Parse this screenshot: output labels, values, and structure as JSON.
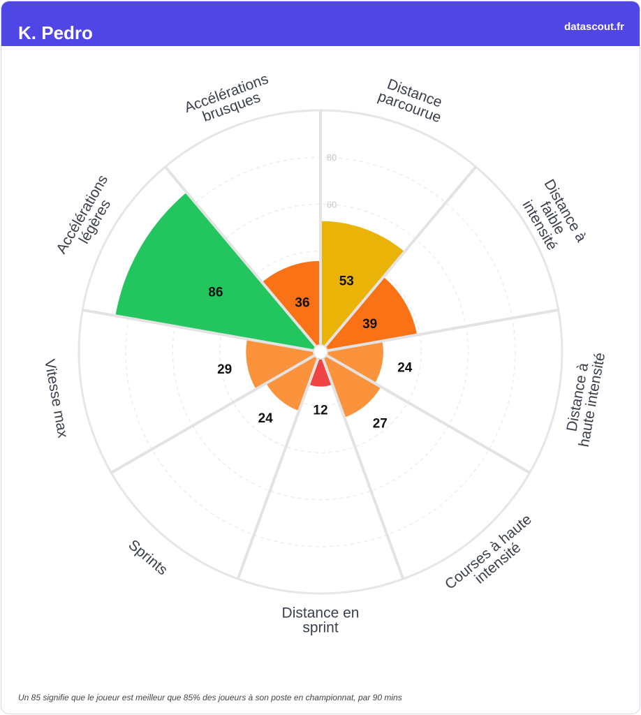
{
  "header": {
    "player_name": "K. Pedro",
    "brand": "datascout.fr"
  },
  "footnote": "Un 85 signifie que le joueur est meilleur que 85% des joueurs à son poste en championnat, par 90 mins",
  "colors": {
    "header_bg": "#4f46e5",
    "green": "#22c55e",
    "yellow": "#eab308",
    "dark_orange": "#f97316",
    "light_orange": "#fb923c",
    "red": "#ef4444",
    "grid": "#e6e6e6"
  },
  "chart_data": {
    "type": "polar_bar",
    "ylim": [
      0,
      100
    ],
    "ticks": [
      "60",
      "80"
    ],
    "categories": [
      {
        "label_lines": [
          "Distance",
          "parcourue"
        ],
        "value": 53,
        "color": "#eab308"
      },
      {
        "label_lines": [
          "Distance à",
          "faible",
          "intensité"
        ],
        "value": 39,
        "color": "#f97316"
      },
      {
        "label_lines": [
          "Distance à",
          "haute intensité"
        ],
        "value": 24,
        "color": "#fb923c"
      },
      {
        "label_lines": [
          "Courses à haute",
          "intensité"
        ],
        "value": 27,
        "color": "#fb923c"
      },
      {
        "label_lines": [
          "Distance en",
          "sprint"
        ],
        "value": 12,
        "color": "#ef4444"
      },
      {
        "label_lines": [
          "Sprints"
        ],
        "value": 24,
        "color": "#fb923c"
      },
      {
        "label_lines": [
          "Vitesse max"
        ],
        "value": 29,
        "color": "#fb923c"
      },
      {
        "label_lines": [
          "Accélérations",
          "légères"
        ],
        "value": 86,
        "color": "#22c55e"
      },
      {
        "label_lines": [
          "Accélérations",
          "brusques"
        ],
        "value": 36,
        "color": "#f97316"
      }
    ]
  }
}
